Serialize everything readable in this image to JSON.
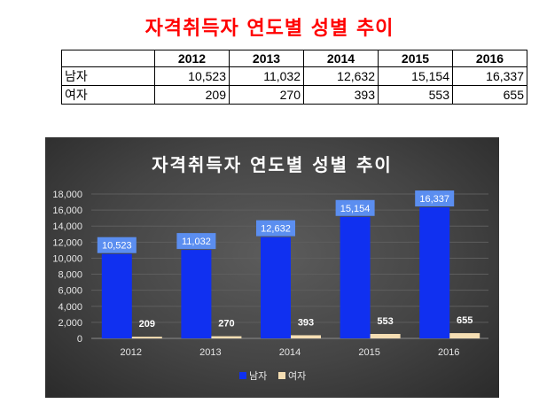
{
  "page": {
    "title": "자격취득자 연도별 성별 추이"
  },
  "table": {
    "headers": [
      "",
      "2012",
      "2013",
      "2014",
      "2015",
      "2016"
    ],
    "rows": [
      {
        "label": "남자",
        "values": [
          "10,523",
          "11,032",
          "12,632",
          "15,154",
          "16,337"
        ]
      },
      {
        "label": "여자",
        "values": [
          "209",
          "270",
          "393",
          "553",
          "655"
        ]
      }
    ]
  },
  "chart_data": {
    "type": "bar",
    "title": "자격취득자 연도별 성별 추이",
    "categories": [
      "2012",
      "2013",
      "2014",
      "2015",
      "2016"
    ],
    "series": [
      {
        "name": "남자",
        "values": [
          10523,
          11032,
          12632,
          15154,
          16337
        ],
        "color": "#1030f0",
        "label_color": "#5b8ef0"
      },
      {
        "name": "여자",
        "values": [
          209,
          270,
          393,
          553,
          655
        ],
        "color": "#f5deb3"
      }
    ],
    "ylim": [
      0,
      18000
    ],
    "yticks": [
      "0",
      "2,000",
      "4,000",
      "6,000",
      "8,000",
      "10,000",
      "12,000",
      "14,000",
      "16,000",
      "18,000"
    ],
    "data_labels": [
      [
        "10,523",
        "11,032",
        "12,632",
        "15,154",
        "16,337"
      ],
      [
        "209",
        "270",
        "393",
        "553",
        "655"
      ]
    ],
    "grid": true,
    "legend": "bottom",
    "background": "#404040"
  }
}
